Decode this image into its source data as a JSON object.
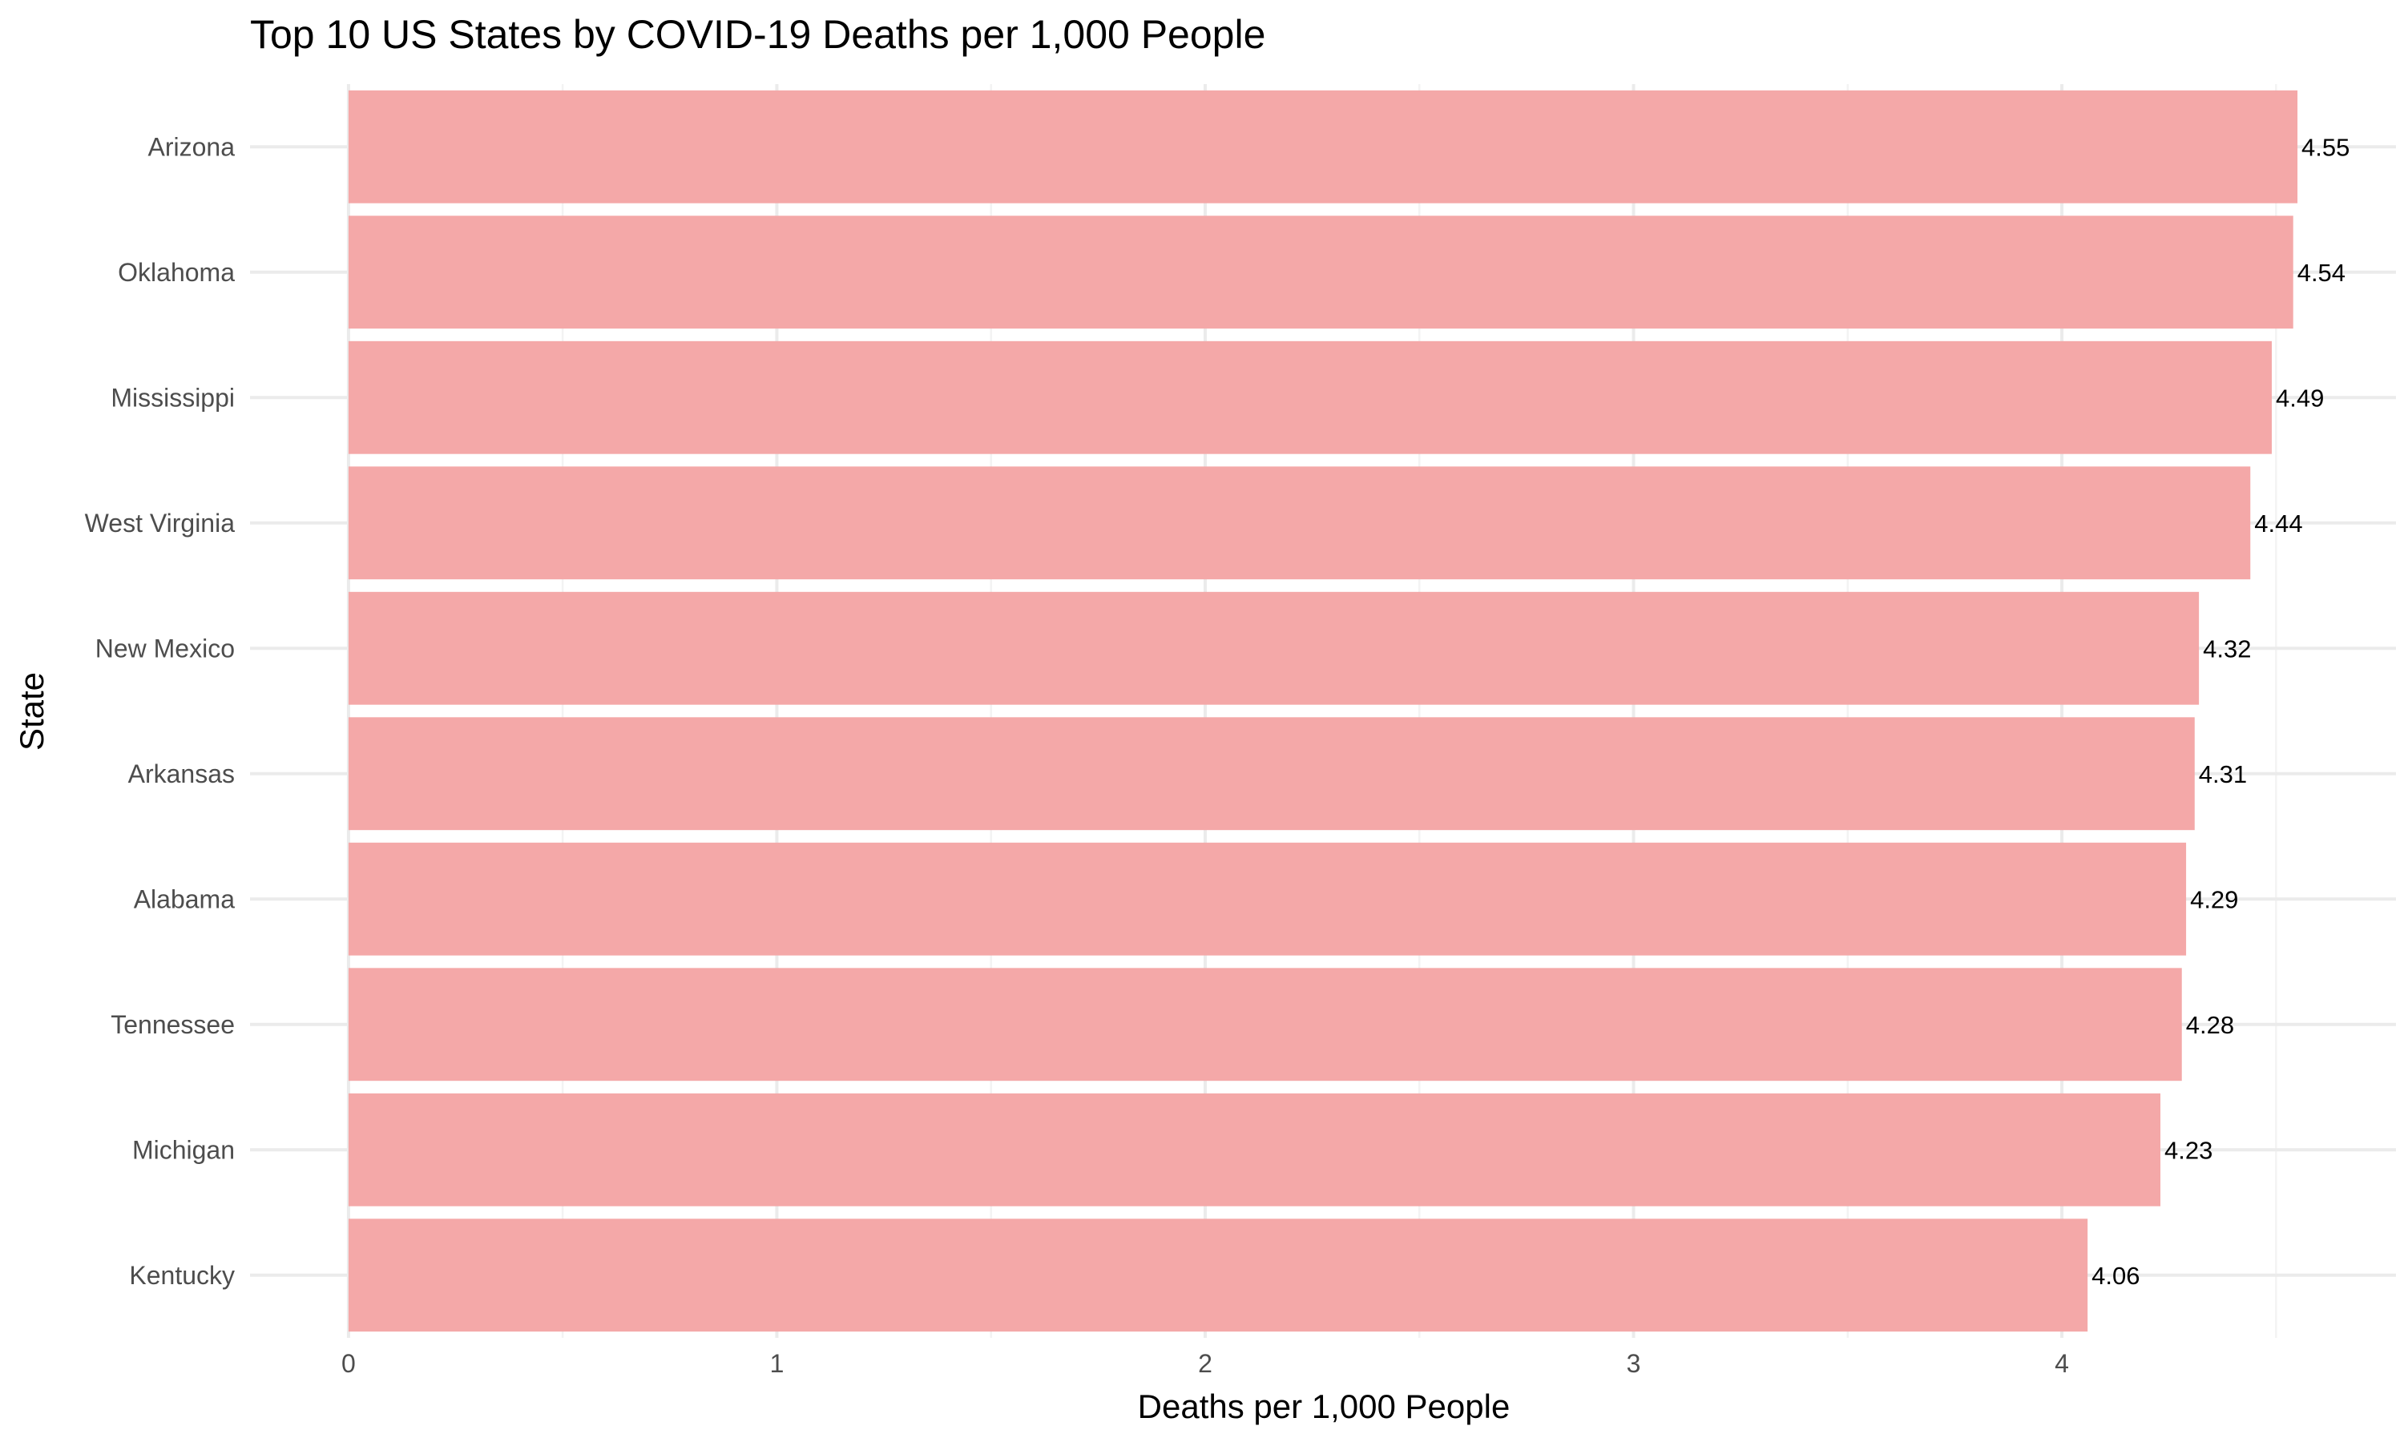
{
  "chart_data": {
    "type": "bar",
    "orientation": "horizontal",
    "title": "Top 10 US States by COVID-19 Deaths per 1,000 People",
    "xlabel": "Deaths per 1,000 People",
    "ylabel": "State",
    "categories": [
      "Arizona",
      "Oklahoma",
      "Mississippi",
      "West Virginia",
      "New Mexico",
      "Arkansas",
      "Alabama",
      "Tennessee",
      "Michigan",
      "Kentucky"
    ],
    "values": [
      4.55,
      4.54,
      4.49,
      4.44,
      4.32,
      4.31,
      4.29,
      4.28,
      4.23,
      4.06
    ],
    "value_labels": [
      "4.55",
      "4.54",
      "4.49",
      "4.44",
      "4.32",
      "4.31",
      "4.29",
      "4.28",
      "4.23",
      "4.06"
    ],
    "x_ticks": [
      0,
      1,
      2,
      3,
      4
    ],
    "x_tick_labels": [
      "0",
      "1",
      "2",
      "3",
      "4"
    ],
    "xlim": [
      -0.23,
      4.78
    ],
    "grid": true,
    "legend": "none",
    "bar_color": "#f4a6a6"
  }
}
